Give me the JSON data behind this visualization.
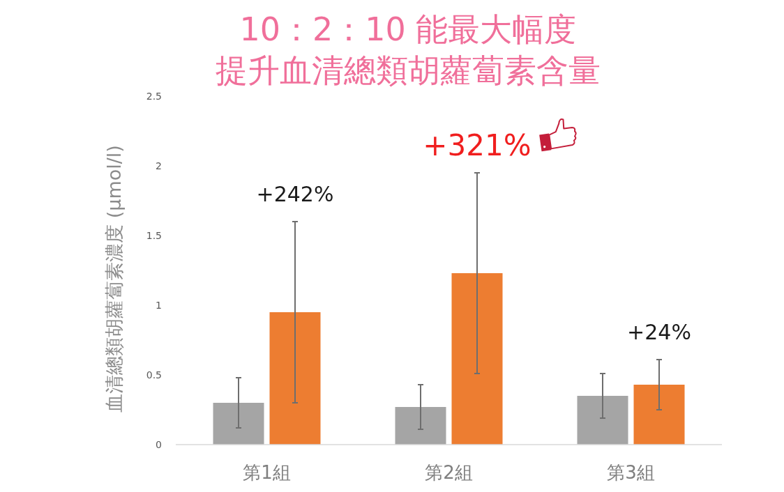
{
  "chart_data": {
    "type": "bar",
    "title": "10：2：10 能最大幅度",
    "subtitle": "提升血清總類胡蘿蔔素含量",
    "ylabel": "血清總類胡蘿蔔素濃度 (µmol/l)",
    "categories": [
      "第1組",
      "第2組",
      "第3組"
    ],
    "series": [
      {
        "color": "#a5a5a5",
        "values": [
          0.3,
          0.27,
          0.35
        ],
        "errors": [
          0.18,
          0.16,
          0.16
        ]
      },
      {
        "color": "#ed7d31",
        "values": [
          0.95,
          1.23,
          0.43
        ],
        "errors": [
          0.65,
          0.72,
          0.18
        ]
      }
    ],
    "ylim": [
      0,
      2.5
    ],
    "yticks": [
      0,
      0.5,
      1,
      1.5,
      2,
      2.5
    ],
    "annotations": [
      "+242%",
      "+321%",
      "+24%"
    ]
  }
}
